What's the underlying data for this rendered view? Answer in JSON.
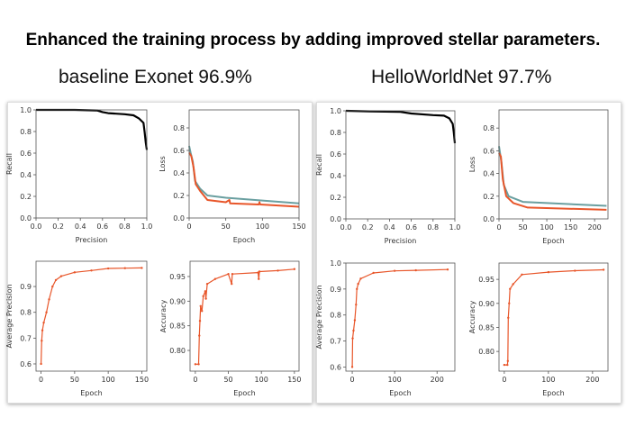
{
  "slide": {
    "title": "Enhanced the training process by adding improved stellar parameters.",
    "left_subtitle": "baseline Exonet 96.9%",
    "right_subtitle": "HelloWorldNet 97.7%"
  },
  "colors": {
    "pr_curve": "#000000",
    "train": "#e8562a",
    "validation": "#6a9fa0"
  },
  "chart_data": [
    {
      "id": "left-pr",
      "type": "line",
      "xlabel": "Precision",
      "ylabel": "Recall",
      "xlim": [
        0,
        1
      ],
      "ylim": [
        0,
        1
      ],
      "xticks": [
        "0.0",
        "0.2",
        "0.4",
        "0.6",
        "0.8",
        "1.0"
      ],
      "yticks": [
        "0.0",
        "0.2",
        "0.4",
        "0.6",
        "0.8",
        "1.0"
      ],
      "series": [
        {
          "color": "#000000",
          "width": 2.2,
          "points": [
            [
              0,
              1
            ],
            [
              0.35,
              1
            ],
            [
              0.55,
              0.995
            ],
            [
              0.6,
              0.98
            ],
            [
              0.65,
              0.97
            ],
            [
              0.8,
              0.96
            ],
            [
              0.88,
              0.95
            ],
            [
              0.93,
              0.92
            ],
            [
              0.97,
              0.88
            ],
            [
              0.98,
              0.8
            ],
            [
              0.99,
              0.7
            ],
            [
              1.0,
              0.63
            ]
          ]
        }
      ]
    },
    {
      "id": "left-loss",
      "type": "line",
      "xlabel": "Epoch",
      "ylabel": "Loss",
      "xlim": [
        0,
        150
      ],
      "ylim": [
        0,
        0.96
      ],
      "xticks": [
        "0",
        "50",
        "100",
        "150"
      ],
      "yticks": [
        "0.0",
        "0.2",
        "0.4",
        "0.6",
        "0.8"
      ],
      "series": [
        {
          "color": "#6a9fa0",
          "width": 2,
          "points": [
            [
              0,
              0.64
            ],
            [
              2,
              0.58
            ],
            [
              5,
              0.5
            ],
            [
              8,
              0.33
            ],
            [
              15,
              0.26
            ],
            [
              25,
              0.2
            ],
            [
              50,
              0.18
            ],
            [
              100,
              0.155
            ],
            [
              150,
              0.13
            ]
          ]
        },
        {
          "color": "#e8562a",
          "width": 2,
          "points": [
            [
              0,
              0.58
            ],
            [
              3,
              0.55
            ],
            [
              6,
              0.45
            ],
            [
              9,
              0.3
            ],
            [
              15,
              0.24
            ],
            [
              25,
              0.16
            ],
            [
              50,
              0.14
            ],
            [
              55,
              0.16
            ],
            [
              56,
              0.13
            ],
            [
              95,
              0.12
            ],
            [
              96,
              0.14
            ],
            [
              97,
              0.12
            ],
            [
              150,
              0.1
            ]
          ]
        }
      ]
    },
    {
      "id": "left-ap",
      "type": "line",
      "xlabel": "Epoch",
      "ylabel": "Average Precision",
      "xlim": [
        -7.5,
        157.5
      ],
      "ylim": [
        0.572,
        0.998
      ],
      "xticks": [
        "0",
        "50",
        "100",
        "150"
      ],
      "yticks": [
        "0.6",
        "0.7",
        "0.8",
        "0.9"
      ],
      "series": [
        {
          "color": "#e8562a",
          "width": 1.2,
          "markers": true,
          "points": [
            [
              0,
              0.6
            ],
            [
              1,
              0.69
            ],
            [
              2,
              0.73
            ],
            [
              4,
              0.76
            ],
            [
              8,
              0.8
            ],
            [
              12,
              0.85
            ],
            [
              17,
              0.9
            ],
            [
              22,
              0.925
            ],
            [
              30,
              0.94
            ],
            [
              50,
              0.955
            ],
            [
              75,
              0.962
            ],
            [
              100,
              0.97
            ],
            [
              125,
              0.971
            ],
            [
              150,
              0.972
            ]
          ]
        }
      ]
    },
    {
      "id": "left-acc",
      "type": "line",
      "xlabel": "Epoch",
      "ylabel": "Accuracy",
      "xlim": [
        -8,
        157
      ],
      "ylim": [
        0.758,
        0.981
      ],
      "xticks": [
        "0",
        "50",
        "100",
        "150"
      ],
      "yticks": [
        "0.80",
        "0.85",
        "0.90",
        "0.95"
      ],
      "series": [
        {
          "color": "#e8562a",
          "width": 1.2,
          "markers": true,
          "points": [
            [
              0,
              0.772
            ],
            [
              5,
              0.772
            ],
            [
              6,
              0.83
            ],
            [
              7,
              0.86
            ],
            [
              8,
              0.89
            ],
            [
              10,
              0.88
            ],
            [
              12,
              0.91
            ],
            [
              15,
              0.92
            ],
            [
              16,
              0.905
            ],
            [
              18,
              0.935
            ],
            [
              30,
              0.945
            ],
            [
              50,
              0.955
            ],
            [
              55,
              0.935
            ],
            [
              56,
              0.955
            ],
            [
              95,
              0.958
            ],
            [
              96,
              0.945
            ],
            [
              97,
              0.96
            ],
            [
              125,
              0.962
            ],
            [
              150,
              0.965
            ]
          ]
        }
      ]
    },
    {
      "id": "right-pr",
      "type": "line",
      "xlabel": "Precision",
      "ylabel": "Recall",
      "xlim": [
        0,
        1
      ],
      "ylim": [
        0,
        1
      ],
      "xticks": [
        "0.0",
        "0.2",
        "0.4",
        "0.6",
        "0.8",
        "1.0"
      ],
      "yticks": [
        "0.0",
        "0.2",
        "0.4",
        "0.6",
        "0.8",
        "1.0"
      ],
      "series": [
        {
          "color": "#000000",
          "width": 2.2,
          "points": [
            [
              0,
              1
            ],
            [
              0.22,
              0.995
            ],
            [
              0.5,
              0.99
            ],
            [
              0.6,
              0.975
            ],
            [
              0.8,
              0.96
            ],
            [
              0.9,
              0.955
            ],
            [
              0.95,
              0.93
            ],
            [
              0.98,
              0.88
            ],
            [
              0.99,
              0.8
            ],
            [
              1.0,
              0.7
            ]
          ]
        }
      ]
    },
    {
      "id": "right-loss",
      "type": "line",
      "xlabel": "Epoch",
      "ylabel": "Loss",
      "xlim": [
        0,
        228
      ],
      "ylim": [
        0,
        0.96
      ],
      "xticks": [
        "0",
        "50",
        "100",
        "150",
        "200"
      ],
      "yticks": [
        "0.0",
        "0.2",
        "0.4",
        "0.6",
        "0.8"
      ],
      "series": [
        {
          "color": "#6a9fa0",
          "width": 2,
          "points": [
            [
              0,
              0.64
            ],
            [
              5,
              0.5
            ],
            [
              10,
              0.3
            ],
            [
              20,
              0.2
            ],
            [
              50,
              0.15
            ],
            [
              100,
              0.14
            ],
            [
              225,
              0.115
            ]
          ]
        },
        {
          "color": "#e8562a",
          "width": 2,
          "points": [
            [
              0,
              0.58
            ],
            [
              4,
              0.55
            ],
            [
              8,
              0.35
            ],
            [
              15,
              0.2
            ],
            [
              30,
              0.14
            ],
            [
              60,
              0.1
            ],
            [
              225,
              0.08
            ]
          ]
        }
      ]
    },
    {
      "id": "right-ap",
      "type": "line",
      "xlabel": "Epoch",
      "ylabel": "Average Precision",
      "xlim": [
        -15,
        242
      ],
      "ylim": [
        0.584,
        1.0
      ],
      "xticks": [
        "0",
        "100",
        "200"
      ],
      "yticks": [
        "0.6",
        "0.7",
        "0.8",
        "0.9",
        "1.0"
      ],
      "series": [
        {
          "color": "#e8562a",
          "width": 1.2,
          "markers": true,
          "points": [
            [
              0,
              0.6
            ],
            [
              1,
              0.71
            ],
            [
              3,
              0.74
            ],
            [
              6,
              0.78
            ],
            [
              9,
              0.84
            ],
            [
              11,
              0.9
            ],
            [
              14,
              0.92
            ],
            [
              20,
              0.94
            ],
            [
              50,
              0.962
            ],
            [
              100,
              0.97
            ],
            [
              150,
              0.972
            ],
            [
              225,
              0.975
            ]
          ]
        }
      ]
    },
    {
      "id": "right-acc",
      "type": "line",
      "xlabel": "Epoch",
      "ylabel": "Accuracy",
      "xlim": [
        -12,
        235
      ],
      "ylim": [
        0.759,
        0.984
      ],
      "xticks": [
        "0",
        "100",
        "200"
      ],
      "yticks": [
        "0.80",
        "0.85",
        "0.90",
        "0.95"
      ],
      "series": [
        {
          "color": "#e8562a",
          "width": 1.2,
          "markers": true,
          "points": [
            [
              0,
              0.772
            ],
            [
              7,
              0.772
            ],
            [
              8,
              0.78
            ],
            [
              9,
              0.87
            ],
            [
              11,
              0.9
            ],
            [
              13,
              0.93
            ],
            [
              20,
              0.94
            ],
            [
              40,
              0.96
            ],
            [
              100,
              0.965
            ],
            [
              160,
              0.968
            ],
            [
              225,
              0.97
            ]
          ]
        }
      ]
    }
  ]
}
